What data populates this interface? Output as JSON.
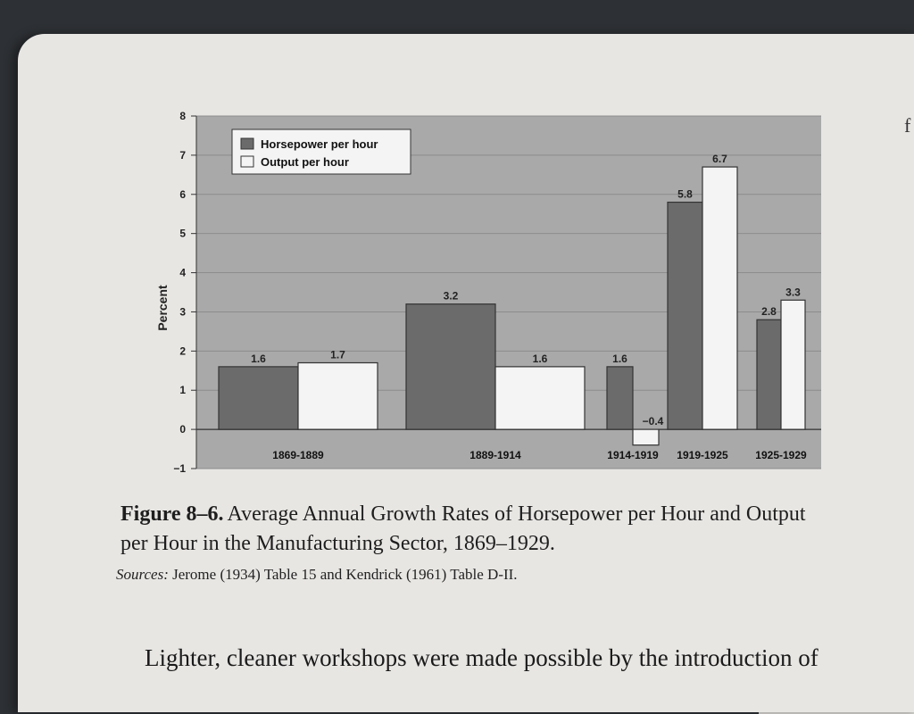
{
  "chart_data": {
    "type": "bar",
    "categories": [
      "1869-1889",
      "1889-1914",
      "1914-1919",
      "1919-1925",
      "1925-1929"
    ],
    "series": [
      {
        "name": "Horsepower per hour",
        "values": [
          1.6,
          3.2,
          1.6,
          5.8,
          2.8
        ]
      },
      {
        "name": "Output per hour",
        "values": [
          1.7,
          1.6,
          -0.4,
          6.7,
          3.3
        ]
      }
    ],
    "data_labels": {
      "horsepower": [
        "1.6",
        "3.2",
        "1.6",
        "5.8",
        "2.8"
      ],
      "output": [
        "1.7",
        "1.6",
        "−0.4",
        "6.7",
        "3.3"
      ]
    },
    "ylabel": "Percent",
    "ylim": [
      -1,
      8
    ],
    "yticks": [
      "−1",
      "0",
      "1",
      "2",
      "3",
      "4",
      "5",
      "6",
      "7",
      "8"
    ],
    "legend_position": "top-left",
    "grid": true,
    "colors": {
      "horsepower": "#6b6b6b",
      "output": "#f4f4f4",
      "plot_bg": "#a9a9a9"
    }
  },
  "caption": {
    "label": "Figure 8–6.",
    "title": "Average Annual Growth Rates of Horsepower per Hour and Output per Hour in the Manufacturing Sector, 1869–1929.",
    "sources_label": "Sources:",
    "sources_text": "Jerome (1934) Table 15 and Kendrick (1961) Table D-II."
  },
  "body_text": "Lighter, cleaner workshops were made possible by the introduction of",
  "page_edge_char": "f"
}
